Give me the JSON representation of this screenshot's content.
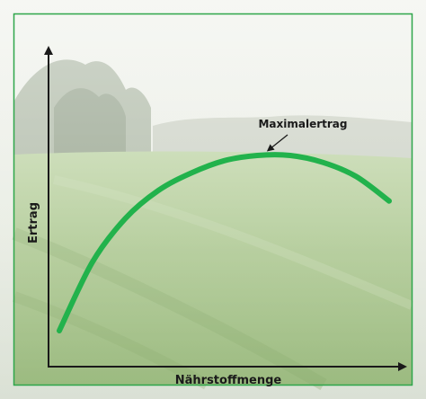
{
  "chart_data": {
    "type": "line",
    "xlabel": "Nährstoffmenge",
    "ylabel": "Ertrag",
    "grid": false,
    "axis_ticks": false,
    "background": "photo of a green grain field with trees and misty sky",
    "annotations": [
      {
        "text": "Maximalertrag",
        "points_to": "curve maximum"
      }
    ],
    "series": [
      {
        "color": "#22b24c",
        "x": [
          0.0,
          0.1,
          0.2,
          0.3,
          0.4,
          0.5,
          0.6,
          0.7,
          0.8,
          0.9,
          1.0
        ],
        "y": [
          0.0,
          0.39,
          0.64,
          0.8,
          0.9,
          0.97,
          1.0,
          1.0,
          0.96,
          0.88,
          0.74
        ]
      }
    ]
  },
  "colors": {
    "frame": "#2ea64a",
    "axis": "#1a1a1a",
    "curve": "#22b24c"
  }
}
